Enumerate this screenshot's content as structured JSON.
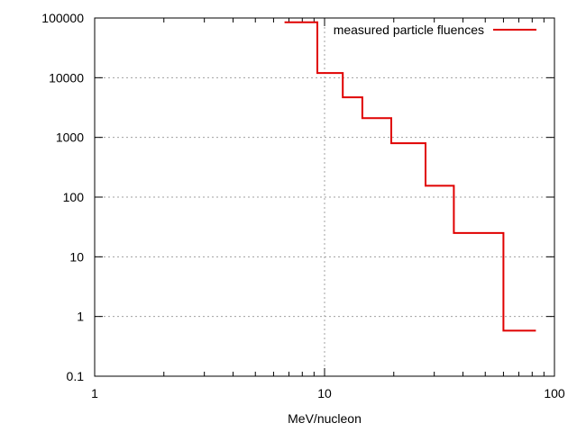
{
  "chart_data": {
    "type": "line",
    "title": "",
    "xlabel": "MeV/nucleon",
    "ylabel": "",
    "x_scale": "log",
    "y_scale": "log",
    "xlim": [
      1,
      100
    ],
    "ylim": [
      0.1,
      100000
    ],
    "x_ticks": [
      {
        "value": 1,
        "label": "1"
      },
      {
        "value": 10,
        "label": "10"
      },
      {
        "value": 100,
        "label": "100"
      }
    ],
    "y_ticks": [
      {
        "value": 0.1,
        "label": "0.1"
      },
      {
        "value": 1,
        "label": "1"
      },
      {
        "value": 10,
        "label": "10"
      },
      {
        "value": 100,
        "label": "100"
      },
      {
        "value": 1000,
        "label": "1000"
      },
      {
        "value": 10000,
        "label": "10000"
      },
      {
        "value": 100000,
        "label": "100000"
      }
    ],
    "grid": true,
    "legend_position": "top-right",
    "series": [
      {
        "name": "measured particle fluences",
        "color": "#e00000",
        "style": "step",
        "bins": [
          {
            "x_start": 6.7,
            "x_end": 9.3,
            "y": 85000
          },
          {
            "x_start": 9.3,
            "x_end": 12.0,
            "y": 12000
          },
          {
            "x_start": 12.0,
            "x_end": 14.6,
            "y": 4700
          },
          {
            "x_start": 14.6,
            "x_end": 19.5,
            "y": 2100
          },
          {
            "x_start": 19.5,
            "x_end": 27.5,
            "y": 800
          },
          {
            "x_start": 27.5,
            "x_end": 36.5,
            "y": 155
          },
          {
            "x_start": 36.5,
            "x_end": 60.0,
            "y": 25
          },
          {
            "x_start": 60.0,
            "x_end": 83.0,
            "y": 0.58
          }
        ]
      }
    ]
  }
}
